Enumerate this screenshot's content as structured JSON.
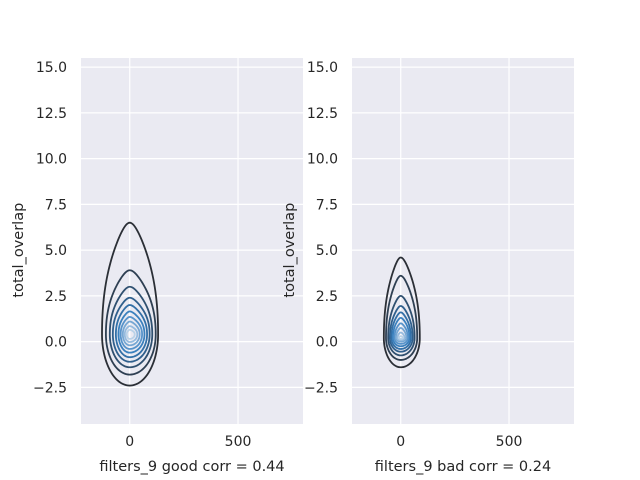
{
  "chart_data": [
    {
      "type": "kde-contour",
      "xlabel": "filters_9 good corr = 0.44",
      "ylabel": "total_overlap",
      "xlim": [
        -225,
        800
      ],
      "ylim": [
        -4.5,
        15.5
      ],
      "xticks": [
        0,
        500
      ],
      "yticks": [
        -2.5,
        0.0,
        2.5,
        5.0,
        7.5,
        10.0,
        12.5,
        15.0
      ],
      "grid": true,
      "center": {
        "x": 0,
        "y": 0.4
      },
      "contours": [
        {
          "level": 1,
          "x_min": -128,
          "x_max": 131,
          "y_min": -2.4,
          "y_max": 6.5
        },
        {
          "level": 2,
          "x_min": -110,
          "x_max": 120,
          "y_min": -1.8,
          "y_max": 3.9
        },
        {
          "level": 3,
          "x_min": -92,
          "x_max": 104,
          "y_min": -1.4,
          "y_max": 3.0
        },
        {
          "level": 4,
          "x_min": -78,
          "x_max": 92,
          "y_min": -1.1,
          "y_max": 2.4
        },
        {
          "level": 5,
          "x_min": -64,
          "x_max": 80,
          "y_min": -0.85,
          "y_max": 2.0
        },
        {
          "level": 6,
          "x_min": -52,
          "x_max": 68,
          "y_min": -0.6,
          "y_max": 1.65
        },
        {
          "level": 7,
          "x_min": -42,
          "x_max": 57,
          "y_min": -0.4,
          "y_max": 1.35
        },
        {
          "level": 8,
          "x_min": -32,
          "x_max": 46,
          "y_min": -0.2,
          "y_max": 1.1
        },
        {
          "level": 9,
          "x_min": -23,
          "x_max": 35,
          "y_min": -0.02,
          "y_max": 0.85
        },
        {
          "level": 10,
          "x_min": -14,
          "x_max": 23,
          "y_min": 0.15,
          "y_max": 0.65
        }
      ]
    },
    {
      "type": "kde-contour",
      "xlabel": "filters_9 bad corr = 0.24",
      "ylabel": "total_overlap",
      "xlim": [
        -225,
        800
      ],
      "ylim": [
        -4.5,
        15.5
      ],
      "xticks": [
        0,
        500
      ],
      "yticks": [
        -2.5,
        0.0,
        2.5,
        5.0,
        7.5,
        10.0,
        12.5,
        15.0
      ],
      "grid": true,
      "center": {
        "x": 0,
        "y": 0.2
      },
      "contours": [
        {
          "level": 1,
          "x_min": -78,
          "x_max": 88,
          "y_min": -1.4,
          "y_max": 4.6
        },
        {
          "level": 2,
          "x_min": -68,
          "x_max": 76,
          "y_min": -1.0,
          "y_max": 3.6
        },
        {
          "level": 3,
          "x_min": -58,
          "x_max": 64,
          "y_min": -0.75,
          "y_max": 2.5
        },
        {
          "level": 4,
          "x_min": -50,
          "x_max": 55,
          "y_min": -0.55,
          "y_max": 1.95
        },
        {
          "level": 5,
          "x_min": -43,
          "x_max": 47,
          "y_min": -0.4,
          "y_max": 1.6
        },
        {
          "level": 6,
          "x_min": -36,
          "x_max": 40,
          "y_min": -0.25,
          "y_max": 1.3
        },
        {
          "level": 7,
          "x_min": -29,
          "x_max": 33,
          "y_min": -0.12,
          "y_max": 1.0
        },
        {
          "level": 8,
          "x_min": -22,
          "x_max": 26,
          "y_min": 0.0,
          "y_max": 0.75
        },
        {
          "level": 9,
          "x_min": -15,
          "x_max": 18,
          "y_min": 0.08,
          "y_max": 0.5
        },
        {
          "level": 10,
          "x_min": -8,
          "x_max": 10,
          "y_min": 0.15,
          "y_max": 0.3
        }
      ]
    }
  ],
  "colors": {
    "plot_background": "#EAEAF2",
    "grid": "#FFFFFF",
    "text": "#262626",
    "contour_scale": [
      "#2B2F36",
      "#2E3F52",
      "#2F5070",
      "#30608D",
      "#3370A7",
      "#3B81BE",
      "#5793CA",
      "#76A7D3",
      "#96BBDE",
      "#B9D2E8"
    ]
  }
}
